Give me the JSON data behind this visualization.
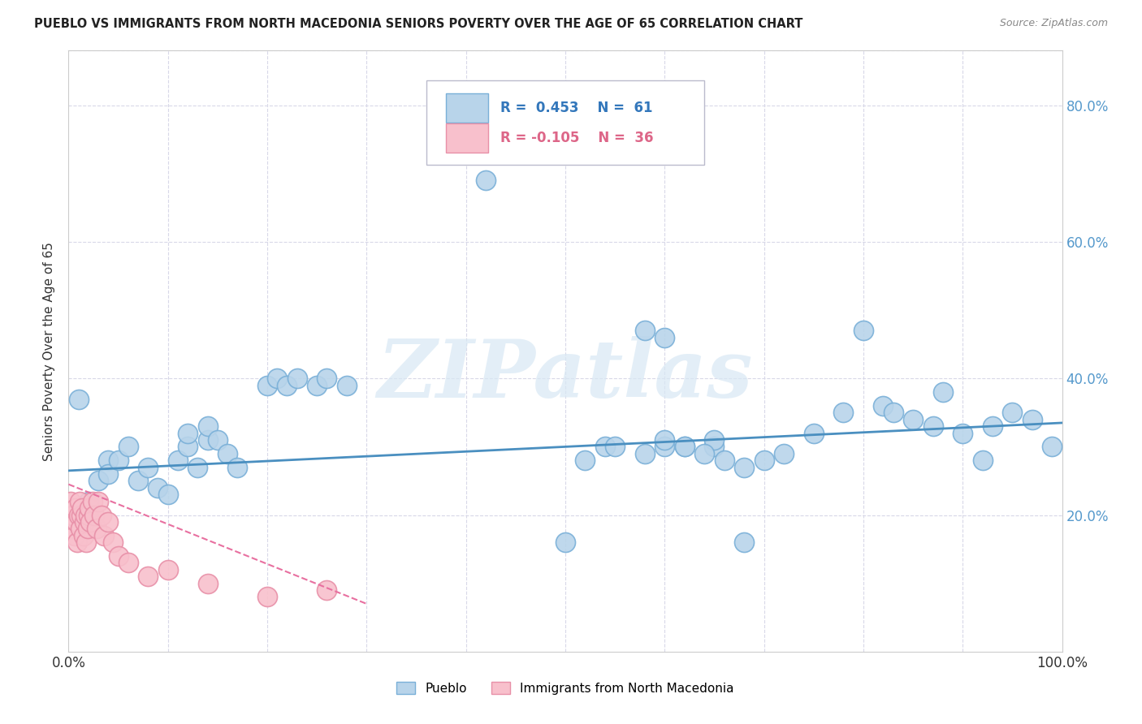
{
  "title": "PUEBLO VS IMMIGRANTS FROM NORTH MACEDONIA SENIORS POVERTY OVER THE AGE OF 65 CORRELATION CHART",
  "source": "Source: ZipAtlas.com",
  "ylabel": "Seniors Poverty Over the Age of 65",
  "xlim": [
    0,
    1.0
  ],
  "ylim": [
    0,
    0.88
  ],
  "xticks": [
    0.0,
    0.1,
    0.2,
    0.3,
    0.4,
    0.5,
    0.6,
    0.7,
    0.8,
    0.9,
    1.0
  ],
  "xticklabels": [
    "0.0%",
    "",
    "",
    "",
    "",
    "",
    "",
    "",
    "",
    "",
    "100.0%"
  ],
  "yticks": [
    0.0,
    0.2,
    0.4,
    0.6,
    0.8
  ],
  "yticklabels_right": [
    "",
    "20.0%",
    "40.0%",
    "60.0%",
    "80.0%"
  ],
  "pueblo_color": "#b8d4ea",
  "pueblo_edge_color": "#7ab0d8",
  "immigrant_color": "#f8c0cc",
  "immigrant_edge_color": "#e890a8",
  "trend_blue": "#4a8fc0",
  "trend_pink": "#e870a0",
  "R_pueblo": 0.453,
  "N_pueblo": 61,
  "R_immigrant": -0.105,
  "N_immigrant": 36,
  "watermark_text": "ZIPatlas",
  "background_color": "#ffffff",
  "grid_color": "#d8d8e8",
  "blue_trend_x0": 0.0,
  "blue_trend_y0": 0.265,
  "blue_trend_x1": 1.0,
  "blue_trend_y1": 0.335,
  "pink_trend_x0": 0.0,
  "pink_trend_y0": 0.245,
  "pink_trend_x1": 0.3,
  "pink_trend_y1": 0.07,
  "pueblo_scatter_x": [
    0.01,
    0.02,
    0.03,
    0.04,
    0.04,
    0.05,
    0.06,
    0.07,
    0.08,
    0.09,
    0.1,
    0.11,
    0.12,
    0.12,
    0.13,
    0.14,
    0.14,
    0.15,
    0.16,
    0.17,
    0.2,
    0.21,
    0.22,
    0.23,
    0.25,
    0.26,
    0.28,
    0.42,
    0.5,
    0.52,
    0.54,
    0.55,
    0.58,
    0.6,
    0.6,
    0.62,
    0.65,
    0.65,
    0.68,
    0.7,
    0.72,
    0.75,
    0.78,
    0.8,
    0.82,
    0.83,
    0.85,
    0.87,
    0.88,
    0.9,
    0.92,
    0.93,
    0.95,
    0.97,
    0.99,
    0.58,
    0.6,
    0.62,
    0.64,
    0.66,
    0.68
  ],
  "pueblo_scatter_y": [
    0.37,
    0.22,
    0.25,
    0.28,
    0.26,
    0.28,
    0.3,
    0.25,
    0.27,
    0.24,
    0.23,
    0.28,
    0.3,
    0.32,
    0.27,
    0.31,
    0.33,
    0.31,
    0.29,
    0.27,
    0.39,
    0.4,
    0.39,
    0.4,
    0.39,
    0.4,
    0.39,
    0.69,
    0.16,
    0.28,
    0.3,
    0.3,
    0.29,
    0.3,
    0.31,
    0.3,
    0.3,
    0.31,
    0.27,
    0.28,
    0.29,
    0.32,
    0.35,
    0.47,
    0.36,
    0.35,
    0.34,
    0.33,
    0.38,
    0.32,
    0.28,
    0.33,
    0.35,
    0.34,
    0.3,
    0.47,
    0.46,
    0.3,
    0.29,
    0.28,
    0.16
  ],
  "immigrant_scatter_x": [
    0.002,
    0.003,
    0.004,
    0.005,
    0.006,
    0.007,
    0.008,
    0.009,
    0.01,
    0.011,
    0.012,
    0.013,
    0.014,
    0.015,
    0.016,
    0.017,
    0.018,
    0.019,
    0.02,
    0.021,
    0.022,
    0.024,
    0.026,
    0.028,
    0.03,
    0.033,
    0.036,
    0.04,
    0.045,
    0.05,
    0.06,
    0.08,
    0.1,
    0.14,
    0.2,
    0.26
  ],
  "immigrant_scatter_y": [
    0.22,
    0.18,
    0.2,
    0.2,
    0.17,
    0.21,
    0.19,
    0.16,
    0.2,
    0.22,
    0.18,
    0.2,
    0.21,
    0.17,
    0.19,
    0.2,
    0.16,
    0.18,
    0.2,
    0.21,
    0.19,
    0.22,
    0.2,
    0.18,
    0.22,
    0.2,
    0.17,
    0.19,
    0.16,
    0.14,
    0.13,
    0.11,
    0.12,
    0.1,
    0.08,
    0.09
  ]
}
